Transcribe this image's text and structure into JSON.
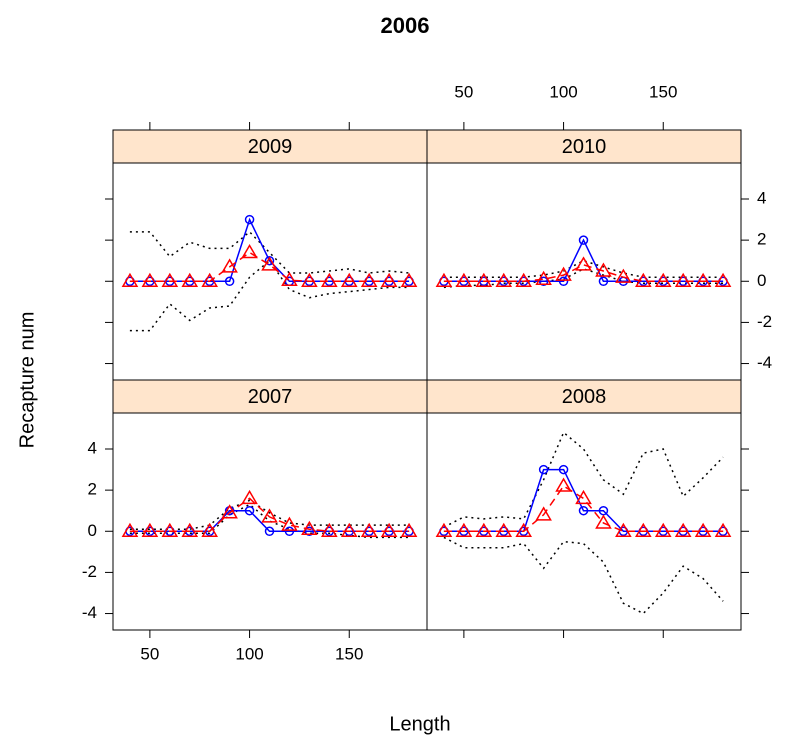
{
  "chart_data": {
    "type": "line",
    "title": "2006",
    "xlabel": "Length",
    "ylabel": "Recapture num",
    "x": [
      40,
      50,
      60,
      70,
      80,
      90,
      100,
      110,
      120,
      130,
      140,
      150,
      160,
      170,
      180
    ],
    "xlim": [
      31.5,
      189
    ],
    "ylim": [
      -4.8,
      5.75
    ],
    "xticks": [
      50,
      100,
      150
    ],
    "yticks": [
      -4,
      -2,
      0,
      2,
      4
    ],
    "strip_color": "#ffe5cc",
    "panels": [
      {
        "title": "2009",
        "series": [
          {
            "color": "#000000",
            "style": "dotted",
            "marker": "none",
            "values": [
              2.4,
              2.4,
              1.2,
              1.9,
              1.6,
              1.6,
              2.4,
              1.4,
              0.4,
              0.4,
              0.5,
              0.6,
              0.4,
              0.5,
              0.4
            ]
          },
          {
            "color": "#000000",
            "style": "dotted",
            "marker": "none",
            "values": [
              -2.4,
              -2.4,
              -1.1,
              -1.9,
              -1.3,
              -1.2,
              0.2,
              1.0,
              -0.4,
              -0.8,
              -0.6,
              -0.5,
              -0.4,
              -0.3,
              -0.3
            ]
          },
          {
            "color": "#0000ff",
            "style": "solid",
            "marker": "circle",
            "values": [
              0,
              0,
              0,
              0,
              0,
              0,
              3,
              1,
              0,
              0,
              0,
              0,
              0,
              0,
              0
            ]
          },
          {
            "color": "#ff0000",
            "style": "dashed",
            "marker": "triangle",
            "values": [
              0,
              0,
              0,
              0,
              0,
              0.7,
              1.4,
              0.8,
              0.05,
              0,
              0,
              0,
              0,
              0,
              0
            ]
          }
        ]
      },
      {
        "title": "2010",
        "series": [
          {
            "color": "#000000",
            "style": "dotted",
            "marker": "none",
            "values": [
              0.2,
              0.2,
              0.2,
              0.2,
              0.2,
              0.3,
              0.5,
              1.0,
              0.7,
              0.4,
              0.2,
              0.2,
              0.2,
              0.2,
              0.2
            ]
          },
          {
            "color": "#000000",
            "style": "dotted",
            "marker": "none",
            "values": [
              -0.3,
              -0.2,
              -0.2,
              -0.1,
              -0.1,
              0,
              0.1,
              0.6,
              0.3,
              0,
              -0.1,
              -0.1,
              -0.1,
              -0.1,
              -0.1
            ]
          },
          {
            "color": "#0000ff",
            "style": "solid",
            "marker": "circle",
            "values": [
              0,
              0,
              0,
              0,
              0,
              0,
              0,
              2,
              0,
              0,
              0,
              0,
              0,
              0,
              0
            ]
          },
          {
            "color": "#ff0000",
            "style": "dashed",
            "marker": "triangle",
            "values": [
              0,
              0,
              0,
              0,
              0,
              0.1,
              0.3,
              0.8,
              0.5,
              0.2,
              0,
              0,
              0,
              0,
              0
            ]
          }
        ]
      },
      {
        "title": "2007",
        "series": [
          {
            "color": "#000000",
            "style": "dotted",
            "marker": "none",
            "values": [
              0.1,
              0.1,
              0.1,
              0.1,
              0.3,
              1.1,
              1.5,
              0.9,
              0.4,
              0.3,
              0.3,
              0.3,
              0.3,
              0.3,
              0.3
            ]
          },
          {
            "color": "#000000",
            "style": "dotted",
            "marker": "none",
            "values": [
              -0.1,
              -0.1,
              -0.1,
              -0.1,
              -0.1,
              0.8,
              1.3,
              0.5,
              0.1,
              -0.1,
              -0.1,
              -0.2,
              -0.3,
              -0.3,
              -0.3
            ]
          },
          {
            "color": "#0000ff",
            "style": "solid",
            "marker": "circle",
            "values": [
              0,
              0,
              0,
              0,
              0,
              1,
              1,
              0,
              0,
              0,
              0,
              0,
              0,
              0,
              0
            ]
          },
          {
            "color": "#ff0000",
            "style": "dashed",
            "marker": "triangle",
            "values": [
              0,
              0,
              0,
              0,
              0,
              0.9,
              1.6,
              0.7,
              0.3,
              0.1,
              0,
              0,
              0,
              0,
              0
            ]
          }
        ]
      },
      {
        "title": "2008",
        "series": [
          {
            "color": "#000000",
            "style": "dotted",
            "marker": "none",
            "values": [
              0.2,
              0.7,
              0.6,
              0.7,
              0.6,
              2.5,
              4.8,
              4.0,
              2.5,
              1.8,
              3.8,
              4.0,
              1.7,
              2.6,
              3.6
            ]
          },
          {
            "color": "#000000",
            "style": "dotted",
            "marker": "none",
            "values": [
              -0.3,
              -0.8,
              -0.8,
              -0.8,
              -0.6,
              -1.8,
              -0.5,
              -0.6,
              -1.5,
              -3.5,
              -4.0,
              -3.0,
              -1.7,
              -2.3,
              -3.4
            ]
          },
          {
            "color": "#0000ff",
            "style": "solid",
            "marker": "circle",
            "values": [
              0,
              0,
              0,
              0,
              0,
              3,
              3,
              1,
              1,
              0,
              0,
              0,
              0,
              0,
              0
            ]
          },
          {
            "color": "#ff0000",
            "style": "dashed",
            "marker": "triangle",
            "values": [
              0,
              0,
              0,
              0,
              0,
              0.8,
              2.2,
              1.6,
              0.4,
              0,
              0,
              0,
              0,
              0,
              0
            ]
          }
        ]
      }
    ]
  }
}
